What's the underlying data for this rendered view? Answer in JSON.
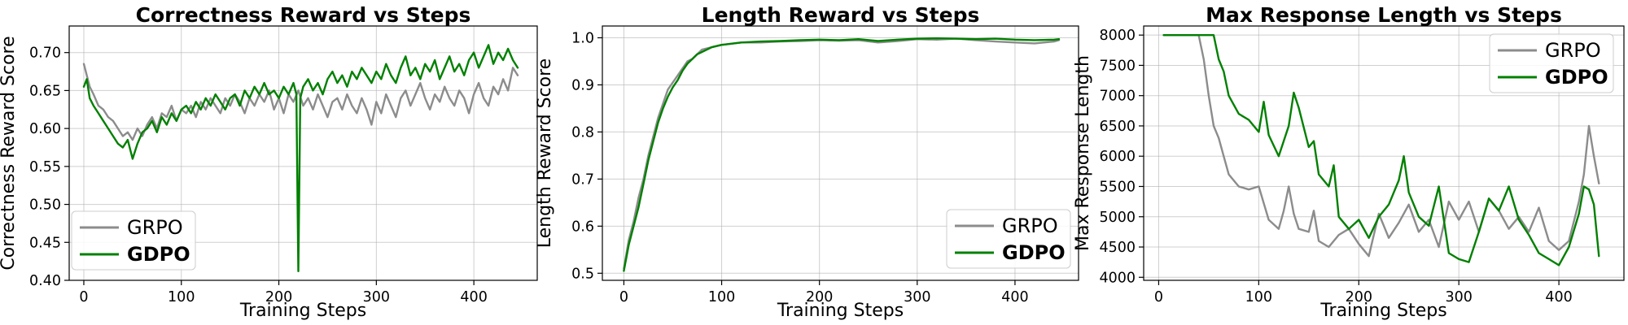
{
  "chart_data": [
    {
      "type": "line",
      "title": "Correctness Reward vs Steps",
      "xlabel": "Training Steps",
      "ylabel": "Correctness Reward Score",
      "xlim": [
        -15,
        465
      ],
      "ylim": [
        0.4,
        0.735
      ],
      "xticks": [
        "0",
        "100",
        "200",
        "300",
        "400"
      ],
      "yticks": [
        "0.40",
        "0.45",
        "0.50",
        "0.55",
        "0.60",
        "0.65",
        "0.70"
      ],
      "grid": true,
      "legend": "lower-left",
      "series": [
        {
          "name": "GRPO",
          "color": "#8c8c8c",
          "x": [
            0,
            3,
            6,
            10,
            15,
            20,
            25,
            30,
            35,
            40,
            45,
            50,
            55,
            60,
            65,
            70,
            75,
            80,
            85,
            90,
            95,
            100,
            105,
            110,
            115,
            120,
            125,
            130,
            135,
            140,
            145,
            150,
            155,
            160,
            165,
            170,
            175,
            180,
            185,
            190,
            195,
            200,
            205,
            210,
            215,
            220,
            225,
            230,
            235,
            240,
            245,
            250,
            255,
            260,
            265,
            270,
            275,
            280,
            285,
            290,
            295,
            300,
            305,
            310,
            315,
            320,
            325,
            330,
            335,
            340,
            345,
            350,
            355,
            360,
            365,
            370,
            375,
            380,
            385,
            390,
            395,
            400,
            405,
            410,
            415,
            420,
            425,
            430,
            435,
            440,
            445
          ],
          "y": [
            0.685,
            0.67,
            0.655,
            0.645,
            0.63,
            0.625,
            0.615,
            0.61,
            0.6,
            0.59,
            0.595,
            0.585,
            0.6,
            0.59,
            0.605,
            0.615,
            0.6,
            0.62,
            0.615,
            0.63,
            0.61,
            0.625,
            0.62,
            0.63,
            0.615,
            0.635,
            0.625,
            0.64,
            0.63,
            0.62,
            0.64,
            0.63,
            0.645,
            0.635,
            0.62,
            0.64,
            0.63,
            0.645,
            0.635,
            0.65,
            0.625,
            0.64,
            0.62,
            0.645,
            0.635,
            0.65,
            0.63,
            0.64,
            0.625,
            0.645,
            0.63,
            0.615,
            0.635,
            0.64,
            0.625,
            0.645,
            0.63,
            0.62,
            0.64,
            0.625,
            0.605,
            0.635,
            0.62,
            0.645,
            0.63,
            0.615,
            0.64,
            0.65,
            0.63,
            0.645,
            0.66,
            0.64,
            0.625,
            0.645,
            0.635,
            0.655,
            0.64,
            0.63,
            0.65,
            0.64,
            0.62,
            0.645,
            0.66,
            0.64,
            0.63,
            0.655,
            0.645,
            0.665,
            0.65,
            0.68,
            0.67
          ]
        },
        {
          "name": "GDPO",
          "color": "#008000",
          "x": [
            0,
            3,
            6,
            10,
            15,
            20,
            25,
            30,
            35,
            40,
            45,
            50,
            55,
            60,
            65,
            70,
            75,
            80,
            85,
            90,
            95,
            100,
            105,
            110,
            115,
            120,
            125,
            130,
            135,
            140,
            145,
            150,
            155,
            160,
            165,
            170,
            175,
            180,
            185,
            190,
            195,
            200,
            205,
            210,
            215,
            218,
            220,
            222,
            225,
            230,
            235,
            240,
            245,
            250,
            255,
            260,
            265,
            270,
            275,
            280,
            285,
            290,
            295,
            300,
            305,
            310,
            315,
            320,
            325,
            330,
            335,
            340,
            345,
            350,
            355,
            360,
            365,
            370,
            375,
            380,
            385,
            390,
            395,
            400,
            405,
            410,
            415,
            420,
            425,
            430,
            435,
            440,
            445
          ],
          "y": [
            0.655,
            0.665,
            0.64,
            0.63,
            0.62,
            0.61,
            0.6,
            0.59,
            0.58,
            0.575,
            0.585,
            0.56,
            0.58,
            0.595,
            0.6,
            0.61,
            0.595,
            0.615,
            0.605,
            0.62,
            0.61,
            0.625,
            0.63,
            0.62,
            0.635,
            0.625,
            0.64,
            0.63,
            0.645,
            0.635,
            0.625,
            0.64,
            0.645,
            0.63,
            0.65,
            0.64,
            0.655,
            0.645,
            0.66,
            0.645,
            0.65,
            0.64,
            0.655,
            0.645,
            0.66,
            0.645,
            0.412,
            0.64,
            0.655,
            0.665,
            0.65,
            0.66,
            0.645,
            0.665,
            0.675,
            0.66,
            0.67,
            0.655,
            0.675,
            0.665,
            0.68,
            0.67,
            0.66,
            0.675,
            0.665,
            0.685,
            0.67,
            0.66,
            0.68,
            0.695,
            0.67,
            0.68,
            0.665,
            0.685,
            0.675,
            0.69,
            0.665,
            0.68,
            0.695,
            0.675,
            0.685,
            0.67,
            0.69,
            0.7,
            0.68,
            0.695,
            0.71,
            0.685,
            0.7,
            0.69,
            0.705,
            0.69,
            0.68
          ]
        }
      ]
    },
    {
      "type": "line",
      "title": "Length Reward vs Steps",
      "xlabel": "Training Steps",
      "ylabel": "Length Reward Score",
      "xlim": [
        -22,
        465
      ],
      "ylim": [
        0.485,
        1.025
      ],
      "xticks": [
        "0",
        "100",
        "200",
        "300",
        "400"
      ],
      "yticks": [
        "0.5",
        "0.6",
        "0.7",
        "0.8",
        "0.9",
        "1.0"
      ],
      "grid": true,
      "legend": "lower-right",
      "series": [
        {
          "name": "GRPO",
          "color": "#8c8c8c",
          "x": [
            0,
            5,
            10,
            15,
            20,
            25,
            30,
            35,
            40,
            45,
            50,
            55,
            60,
            65,
            70,
            75,
            80,
            90,
            100,
            120,
            140,
            160,
            180,
            200,
            220,
            240,
            260,
            280,
            300,
            320,
            340,
            360,
            380,
            400,
            420,
            440,
            445
          ],
          "y": [
            0.51,
            0.57,
            0.61,
            0.66,
            0.7,
            0.75,
            0.79,
            0.83,
            0.86,
            0.89,
            0.905,
            0.92,
            0.935,
            0.95,
            0.955,
            0.965,
            0.975,
            0.98,
            0.985,
            0.99,
            0.99,
            0.992,
            0.993,
            0.995,
            0.994,
            0.995,
            0.99,
            0.993,
            0.997,
            0.996,
            0.998,
            0.995,
            0.992,
            0.99,
            0.988,
            0.992,
            0.995
          ]
        },
        {
          "name": "GDPO",
          "color": "#008000",
          "x": [
            0,
            5,
            10,
            15,
            20,
            25,
            30,
            35,
            40,
            45,
            50,
            55,
            60,
            65,
            70,
            75,
            80,
            90,
            100,
            120,
            140,
            160,
            180,
            200,
            220,
            240,
            260,
            280,
            300,
            320,
            340,
            360,
            380,
            400,
            420,
            440,
            445
          ],
          "y": [
            0.505,
            0.56,
            0.6,
            0.64,
            0.69,
            0.74,
            0.78,
            0.82,
            0.85,
            0.875,
            0.895,
            0.91,
            0.93,
            0.945,
            0.955,
            0.965,
            0.97,
            0.98,
            0.985,
            0.99,
            0.992,
            0.993,
            0.995,
            0.996,
            0.995,
            0.997,
            0.993,
            0.996,
            0.998,
            0.999,
            0.998,
            0.997,
            0.998,
            0.996,
            0.995,
            0.996,
            0.997
          ]
        }
      ]
    },
    {
      "type": "line",
      "title": "Max Response Length vs Steps",
      "xlabel": "Training Steps",
      "ylabel": "Max Response Length",
      "xlim": [
        -15,
        465
      ],
      "ylim": [
        3950,
        8150
      ],
      "xticks": [
        "0",
        "100",
        "200",
        "300",
        "400"
      ],
      "yticks": [
        "4000",
        "4500",
        "5000",
        "5500",
        "6000",
        "6500",
        "7000",
        "7500",
        "8000"
      ],
      "grid": true,
      "legend": "top-right",
      "series": [
        {
          "name": "GRPO",
          "color": "#8c8c8c",
          "x": [
            5,
            20,
            40,
            45,
            50,
            55,
            60,
            65,
            70,
            75,
            80,
            90,
            100,
            110,
            120,
            125,
            130,
            135,
            140,
            150,
            155,
            160,
            170,
            180,
            190,
            200,
            210,
            220,
            230,
            240,
            250,
            260,
            270,
            280,
            290,
            300,
            310,
            320,
            330,
            340,
            350,
            360,
            370,
            380,
            390,
            400,
            410,
            420,
            425,
            430,
            435,
            440
          ],
          "y": [
            8000,
            8000,
            8000,
            7600,
            7000,
            6500,
            6300,
            6000,
            5700,
            5600,
            5500,
            5450,
            5500,
            4950,
            4800,
            5100,
            5500,
            5050,
            4800,
            4750,
            5100,
            4600,
            4500,
            4700,
            4800,
            4550,
            4350,
            5050,
            4650,
            4900,
            5200,
            4750,
            4950,
            4500,
            5250,
            4950,
            5250,
            4750,
            5300,
            5100,
            4800,
            5000,
            4750,
            5150,
            4600,
            4450,
            4600,
            5250,
            5700,
            6500,
            6000,
            5550
          ]
        },
        {
          "name": "GDPO",
          "color": "#008000",
          "x": [
            5,
            20,
            40,
            50,
            55,
            60,
            65,
            70,
            80,
            90,
            100,
            105,
            110,
            120,
            130,
            135,
            140,
            150,
            155,
            160,
            170,
            175,
            180,
            190,
            200,
            210,
            220,
            230,
            240,
            245,
            250,
            260,
            270,
            280,
            290,
            300,
            310,
            320,
            330,
            340,
            350,
            360,
            370,
            380,
            390,
            400,
            410,
            420,
            425,
            430,
            435,
            440
          ],
          "y": [
            8000,
            8000,
            8000,
            8000,
            8000,
            7600,
            7400,
            7000,
            6700,
            6600,
            6400,
            6900,
            6350,
            6000,
            6500,
            7050,
            6800,
            6150,
            6250,
            5700,
            5500,
            5850,
            5000,
            4800,
            4950,
            4650,
            5000,
            5200,
            5600,
            6000,
            5400,
            5000,
            4850,
            5500,
            4400,
            4300,
            4250,
            4750,
            5300,
            5100,
            5500,
            4950,
            4700,
            4400,
            4300,
            4200,
            4500,
            5050,
            5500,
            5450,
            5200,
            4350
          ]
        }
      ]
    }
  ]
}
